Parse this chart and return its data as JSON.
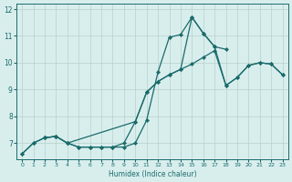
{
  "xlabel": "Humidex (Indice chaleur)",
  "bg_color": "#d8eeed",
  "grid_color": "#b8d0cc",
  "line_color": "#1a6b6b",
  "xlim": [
    -0.5,
    23.5
  ],
  "ylim": [
    6.4,
    12.2
  ],
  "xticks": [
    0,
    1,
    2,
    3,
    4,
    5,
    6,
    7,
    8,
    9,
    10,
    11,
    12,
    13,
    14,
    15,
    16,
    17,
    18,
    19,
    20,
    21,
    22,
    23
  ],
  "yticks": [
    7,
    8,
    9,
    10,
    11,
    12
  ],
  "line1_x": [
    0,
    1,
    2,
    3,
    4,
    5,
    6,
    7,
    8,
    9,
    10,
    11,
    12,
    13,
    14,
    15,
    16,
    17,
    18
  ],
  "line1_y": [
    6.6,
    7.0,
    7.2,
    7.25,
    7.0,
    6.85,
    6.85,
    6.85,
    6.85,
    6.85,
    7.0,
    7.85,
    9.65,
    10.95,
    11.05,
    11.7,
    11.1,
    10.6,
    10.5
  ],
  "line2_x": [
    0,
    1,
    2,
    3,
    4,
    5,
    6,
    7,
    8,
    9,
    10,
    11,
    12,
    13,
    14,
    15,
    16,
    17,
    18,
    19,
    20,
    21,
    22,
    23
  ],
  "line2_y": [
    6.6,
    7.0,
    7.2,
    7.25,
    7.0,
    6.85,
    6.85,
    6.85,
    6.85,
    7.0,
    7.8,
    8.9,
    9.3,
    9.55,
    9.75,
    9.95,
    10.2,
    10.45,
    9.15,
    9.45,
    9.9,
    10.0,
    9.95,
    9.55
  ],
  "line3_x": [
    2,
    3,
    4,
    10,
    11,
    12,
    13,
    14,
    15,
    16,
    17,
    18,
    19,
    20,
    21,
    22,
    23
  ],
  "line3_y": [
    7.2,
    7.25,
    7.0,
    7.8,
    8.9,
    9.3,
    9.55,
    9.75,
    11.7,
    11.1,
    10.6,
    9.15,
    9.45,
    9.9,
    10.0,
    9.95,
    9.55
  ]
}
